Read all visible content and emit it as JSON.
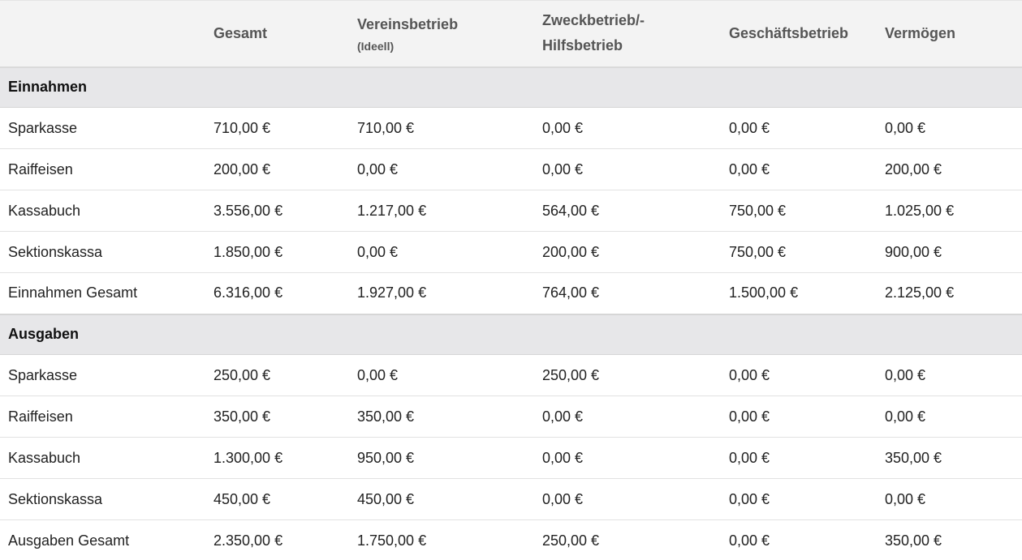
{
  "colors": {
    "header_bg": "#f3f3f3",
    "section_bg": "#e7e7e9",
    "income_total": "#2e7d32",
    "expense_total": "#b71c1c"
  },
  "header": {
    "blank": "",
    "gesamt": "Gesamt",
    "verein_line1": "Vereinsbetrieb",
    "verein_sub": "(Ideell)",
    "zweck_line1": "Zweckbetrieb/-",
    "zweck_line2": "Hilfsbetrieb",
    "geschaeft": "Geschäftsbetrieb",
    "vermoegen": "Vermögen"
  },
  "einnahmen": {
    "title": "Einnahmen",
    "rows": [
      [
        "Sparkasse",
        "710,00 €",
        "710,00 €",
        "0,00 €",
        "0,00 €",
        "0,00 €"
      ],
      [
        "Raiffeisen",
        "200,00 €",
        "0,00 €",
        "0,00 €",
        "0,00 €",
        "200,00 €"
      ],
      [
        "Kassabuch",
        "3.556,00 €",
        "1.217,00 €",
        "564,00 €",
        "750,00 €",
        "1.025,00 €"
      ],
      [
        "Sektionskassa",
        "1.850,00 €",
        "0,00 €",
        "200,00 €",
        "750,00 €",
        "900,00 €"
      ],
      [
        "Einnahmen Gesamt",
        "6.316,00 €",
        "1.927,00 €",
        "764,00 €",
        "1.500,00 €",
        "2.125,00 €"
      ]
    ]
  },
  "ausgaben": {
    "title": "Ausgaben",
    "rows": [
      [
        "Sparkasse",
        "250,00 €",
        "0,00 €",
        "250,00 €",
        "0,00 €",
        "0,00 €"
      ],
      [
        "Raiffeisen",
        "350,00 €",
        "350,00 €",
        "0,00 €",
        "0,00 €",
        "0,00 €"
      ],
      [
        "Kassabuch",
        "1.300,00 €",
        "950,00 €",
        "0,00 €",
        "0,00 €",
        "350,00 €"
      ],
      [
        "Sektionskassa",
        "450,00 €",
        "450,00 €",
        "0,00 €",
        "0,00 €",
        "0,00 €"
      ],
      [
        "Ausgaben Gesamt",
        "2.350,00 €",
        "1.750,00 €",
        "250,00 €",
        "0,00 €",
        "350,00 €"
      ]
    ]
  }
}
